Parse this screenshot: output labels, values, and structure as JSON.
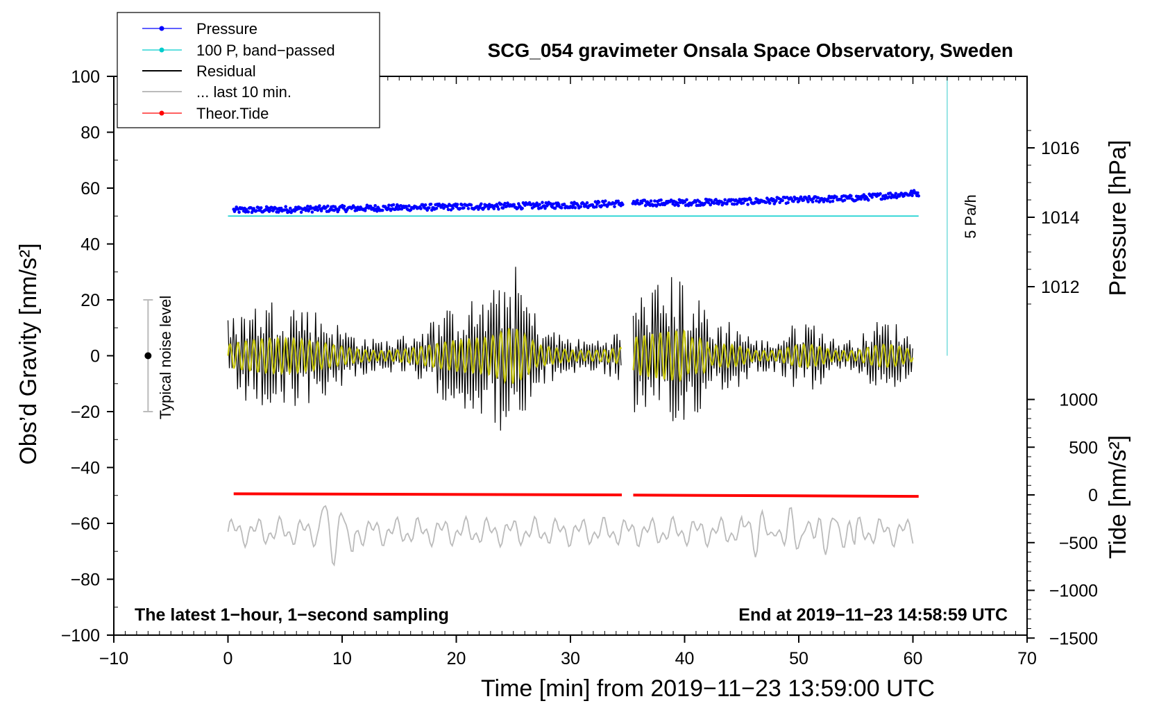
{
  "chart_data": {
    "type": "line",
    "title": "SCG_054 gravimeter Onsala Space Observatory, Sweden",
    "xlabel": "Time [min] from 2019−11−23 13:59:00 UTC",
    "ylabel": "Obs’d Gravity [nm/s²]",
    "ylabel_right_top": "Pressure [hPa]",
    "ylabel_right_bottom": "Tide [nm/s²]",
    "xlim": [
      -10,
      70
    ],
    "ylim": [
      -100,
      100
    ],
    "x_ticks": [
      "−10",
      "0",
      "10",
      "20",
      "30",
      "40",
      "50",
      "60",
      "70"
    ],
    "x_tick_values": [
      -10,
      0,
      10,
      20,
      30,
      40,
      50,
      60,
      70
    ],
    "y_ticks": [
      "100",
      "80",
      "60",
      "40",
      "20",
      "0",
      "−20",
      "−40",
      "−60",
      "−80",
      "−100"
    ],
    "y_tick_values": [
      100,
      80,
      60,
      40,
      20,
      0,
      -20,
      -40,
      -60,
      -80,
      -100
    ],
    "pressure_ticks": [
      "1016",
      "1014",
      "1012"
    ],
    "pressure_tick_values": [
      1016,
      1014,
      1012
    ],
    "tide_ticks": [
      "1000",
      "500",
      "0",
      "−500",
      "−1000",
      "−1500"
    ],
    "tide_tick_values": [
      1000,
      500,
      0,
      -500,
      -1000,
      -1500
    ],
    "legend": [
      "Pressure",
      "100 P, band−passed",
      "Residual",
      "... last 10 min.",
      "Theor.Tide"
    ],
    "annotations": {
      "left_note": "The latest 1−hour, 1−second sampling",
      "right_note": "End at 2019−11−23 14:58:59 UTC",
      "noise_label": "Typical noise level",
      "rate_label": "5 Pa/h"
    },
    "series": [
      {
        "name": "Pressure",
        "unit": "hPa",
        "x": [
          0,
          10,
          20,
          30,
          34.5,
          35.5,
          45,
          55,
          60.5
        ],
        "values": [
          1014.2,
          1014.25,
          1014.3,
          1014.35,
          1014.4,
          1014.4,
          1014.45,
          1014.55,
          1014.7
        ]
      },
      {
        "name": "100 P, band−passed",
        "unit": "nm/s²",
        "x": [
          0,
          60.5
        ],
        "values": [
          50,
          50
        ]
      },
      {
        "name": "Residual",
        "unit": "nm/s²",
        "x": [
          0,
          34.5,
          35.5,
          60
        ],
        "range": [
          -27,
          29
        ]
      },
      {
        "name": "... last 10 min.",
        "unit": "nm/s²",
        "x": [
          0,
          60
        ],
        "range": [
          -75,
          -50
        ]
      },
      {
        "name": "Theor.Tide",
        "unit": "nm/s²",
        "x": [
          0,
          60.5
        ],
        "values": [
          12,
          -15
        ]
      }
    ],
    "noise_bar": {
      "x": -7,
      "center": 0,
      "low": -20,
      "high": 20
    },
    "rate_marker": {
      "x": 63,
      "from": 0,
      "to": 100
    }
  },
  "colors": {
    "pressure": "#0000ff",
    "bandpassed": "#00cccc",
    "residual": "#000000",
    "last10": "#bbbbbb",
    "tide": "#ff0000",
    "overlay": "#cccc00"
  }
}
